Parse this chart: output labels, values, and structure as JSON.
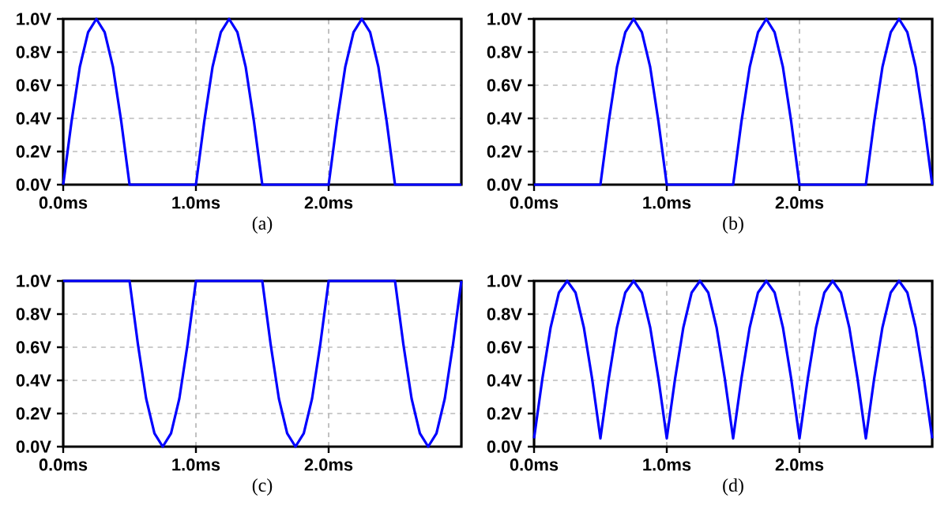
{
  "chart_data": [
    {
      "type": "line",
      "xlabel": "(a)",
      "color": "#0000ff",
      "grid": true,
      "xlim": [
        0,
        3
      ],
      "ylim": [
        0,
        1
      ],
      "xticks": [
        {
          "value": 0,
          "label": "0.0ms"
        },
        {
          "value": 1,
          "label": "1.0ms"
        },
        {
          "value": 2,
          "label": "2.0ms"
        }
      ],
      "yticks": [
        {
          "value": 0,
          "label": "0.0V"
        },
        {
          "value": 0.2,
          "label": "0.2V"
        },
        {
          "value": 0.4,
          "label": "0.4V"
        },
        {
          "value": 0.6,
          "label": "0.6V"
        },
        {
          "value": 0.8,
          "label": "0.8V"
        },
        {
          "value": 1,
          "label": "1.0V"
        }
      ],
      "x": [
        0,
        0.0625,
        0.125,
        0.1875,
        0.25,
        0.3125,
        0.375,
        0.4375,
        0.5,
        0.5625,
        0.625,
        0.6875,
        0.75,
        0.8125,
        0.875,
        0.9375,
        1,
        1.0625,
        1.125,
        1.1875,
        1.25,
        1.3125,
        1.375,
        1.4375,
        1.5,
        1.5625,
        1.625,
        1.6875,
        1.75,
        1.8125,
        1.875,
        1.9375,
        2,
        2.0625,
        2.125,
        2.1875,
        2.25,
        2.3125,
        2.375,
        2.4375,
        2.5,
        2.5625,
        2.625,
        2.6875,
        2.75,
        2.8125,
        2.875,
        2.9375,
        3
      ],
      "values": [
        0,
        0.38,
        0.71,
        0.92,
        1,
        0.92,
        0.71,
        0.38,
        0,
        0,
        0,
        0,
        0,
        0,
        0,
        0,
        0,
        0.38,
        0.71,
        0.92,
        1,
        0.92,
        0.71,
        0.38,
        0,
        0,
        0,
        0,
        0,
        0,
        0,
        0,
        0,
        0.38,
        0.71,
        0.92,
        1,
        0.92,
        0.71,
        0.38,
        0,
        0,
        0,
        0,
        0,
        0,
        0,
        0,
        0
      ]
    },
    {
      "type": "line",
      "xlabel": "(b)",
      "color": "#0000ff",
      "grid": true,
      "xlim": [
        0,
        3
      ],
      "ylim": [
        0,
        1
      ],
      "xticks": [
        {
          "value": 0,
          "label": "0.0ms"
        },
        {
          "value": 1,
          "label": "1.0ms"
        },
        {
          "value": 2,
          "label": "2.0ms"
        }
      ],
      "yticks": [
        {
          "value": 0,
          "label": "0.0V"
        },
        {
          "value": 0.2,
          "label": "0.2V"
        },
        {
          "value": 0.4,
          "label": "0.4V"
        },
        {
          "value": 0.6,
          "label": "0.6V"
        },
        {
          "value": 0.8,
          "label": "0.8V"
        },
        {
          "value": 1,
          "label": "1.0V"
        }
      ],
      "x": [
        0,
        0.0625,
        0.125,
        0.1875,
        0.25,
        0.3125,
        0.375,
        0.4375,
        0.5,
        0.5625,
        0.625,
        0.6875,
        0.75,
        0.8125,
        0.875,
        0.9375,
        1,
        1.0625,
        1.125,
        1.1875,
        1.25,
        1.3125,
        1.375,
        1.4375,
        1.5,
        1.5625,
        1.625,
        1.6875,
        1.75,
        1.8125,
        1.875,
        1.9375,
        2,
        2.0625,
        2.125,
        2.1875,
        2.25,
        2.3125,
        2.375,
        2.4375,
        2.5,
        2.5625,
        2.625,
        2.6875,
        2.75,
        2.8125,
        2.875,
        2.9375,
        3
      ],
      "values": [
        0,
        0,
        0,
        0,
        0,
        0,
        0,
        0,
        0,
        0.38,
        0.71,
        0.92,
        1,
        0.92,
        0.71,
        0.38,
        0,
        0,
        0,
        0,
        0,
        0,
        0,
        0,
        0,
        0.38,
        0.71,
        0.92,
        1,
        0.92,
        0.71,
        0.38,
        0,
        0,
        0,
        0,
        0,
        0,
        0,
        0,
        0,
        0.38,
        0.71,
        0.92,
        1,
        0.92,
        0.71,
        0.38,
        0
      ]
    },
    {
      "type": "line",
      "xlabel": "(c)",
      "color": "#0000ff",
      "grid": true,
      "xlim": [
        0,
        3
      ],
      "ylim": [
        0,
        1
      ],
      "xticks": [
        {
          "value": 0,
          "label": "0.0ms"
        },
        {
          "value": 1,
          "label": "1.0ms"
        },
        {
          "value": 2,
          "label": "2.0ms"
        }
      ],
      "yticks": [
        {
          "value": 0,
          "label": "0.0V"
        },
        {
          "value": 0.2,
          "label": "0.2V"
        },
        {
          "value": 0.4,
          "label": "0.4V"
        },
        {
          "value": 0.6,
          "label": "0.6V"
        },
        {
          "value": 0.8,
          "label": "0.8V"
        },
        {
          "value": 1,
          "label": "1.0V"
        }
      ],
      "x": [
        0,
        0.0625,
        0.125,
        0.1875,
        0.25,
        0.3125,
        0.375,
        0.4375,
        0.5,
        0.5625,
        0.625,
        0.6875,
        0.75,
        0.8125,
        0.875,
        0.9375,
        1,
        1.0625,
        1.125,
        1.1875,
        1.25,
        1.3125,
        1.375,
        1.4375,
        1.5,
        1.5625,
        1.625,
        1.6875,
        1.75,
        1.8125,
        1.875,
        1.9375,
        2,
        2.0625,
        2.125,
        2.1875,
        2.25,
        2.3125,
        2.375,
        2.4375,
        2.5,
        2.5625,
        2.625,
        2.6875,
        2.75,
        2.8125,
        2.875,
        2.9375,
        3
      ],
      "values": [
        1,
        1,
        1,
        1,
        1,
        1,
        1,
        1,
        1,
        0.62,
        0.29,
        0.08,
        0,
        0.08,
        0.29,
        0.62,
        1,
        1,
        1,
        1,
        1,
        1,
        1,
        1,
        1,
        0.62,
        0.29,
        0.08,
        0,
        0.08,
        0.29,
        0.62,
        1,
        1,
        1,
        1,
        1,
        1,
        1,
        1,
        1,
        0.62,
        0.29,
        0.08,
        0,
        0.08,
        0.29,
        0.62,
        1
      ]
    },
    {
      "type": "line",
      "xlabel": "(d)",
      "color": "#0000ff",
      "grid": true,
      "xlim": [
        0,
        3
      ],
      "ylim": [
        0,
        1
      ],
      "xticks": [
        {
          "value": 0,
          "label": "0.0ms"
        },
        {
          "value": 1,
          "label": "1.0ms"
        },
        {
          "value": 2,
          "label": "2.0ms"
        }
      ],
      "yticks": [
        {
          "value": 0,
          "label": "0.0V"
        },
        {
          "value": 0.2,
          "label": "0.2V"
        },
        {
          "value": 0.4,
          "label": "0.4V"
        },
        {
          "value": 0.6,
          "label": "0.6V"
        },
        {
          "value": 0.8,
          "label": "0.8V"
        },
        {
          "value": 1,
          "label": "1.0V"
        }
      ],
      "x": [
        0,
        0.0625,
        0.125,
        0.1875,
        0.25,
        0.3125,
        0.375,
        0.4375,
        0.5,
        0.5625,
        0.625,
        0.6875,
        0.75,
        0.8125,
        0.875,
        0.9375,
        1,
        1.0625,
        1.125,
        1.1875,
        1.25,
        1.3125,
        1.375,
        1.4375,
        1.5,
        1.5625,
        1.625,
        1.6875,
        1.75,
        1.8125,
        1.875,
        1.9375,
        2,
        2.0625,
        2.125,
        2.1875,
        2.25,
        2.3125,
        2.375,
        2.4375,
        2.5,
        2.5625,
        2.625,
        2.6875,
        2.75,
        2.8125,
        2.875,
        2.9375,
        3
      ],
      "values": [
        0.05,
        0.41,
        0.72,
        0.93,
        1,
        0.93,
        0.72,
        0.41,
        0.05,
        0.41,
        0.72,
        0.93,
        1,
        0.93,
        0.72,
        0.41,
        0.05,
        0.41,
        0.72,
        0.93,
        1,
        0.93,
        0.72,
        0.41,
        0.05,
        0.41,
        0.72,
        0.93,
        1,
        0.93,
        0.72,
        0.41,
        0.05,
        0.41,
        0.72,
        0.93,
        1,
        0.93,
        0.72,
        0.41,
        0.05,
        0.41,
        0.72,
        0.93,
        1,
        0.93,
        0.72,
        0.41,
        0.05
      ]
    }
  ]
}
